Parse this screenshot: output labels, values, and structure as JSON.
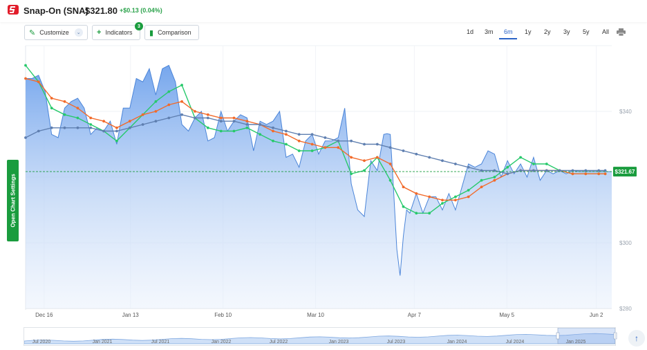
{
  "header": {
    "ticker": "Snap-On (SNA)",
    "price": "$321.80",
    "change": "+$0.13 (0.04%)"
  },
  "toolbar": {
    "customize_label": "Customize",
    "indicators_label": "Indicators",
    "indicators_count": "3",
    "comparison_label": "Comparison"
  },
  "ranges": [
    "1d",
    "3m",
    "6m",
    "1y",
    "2y",
    "3y",
    "5y",
    "All"
  ],
  "active_range": "6m",
  "side_tab_label": "Open Chart Settings",
  "colors": {
    "price_line": "#4a84d8",
    "fill_top": "#6fa2ec",
    "ma_green": "#27c96b",
    "ma_orange": "#f26a2a",
    "ma_slate": "#5f7fb0",
    "current_marker": "#1a9c3e",
    "brand": "#e21d2b"
  },
  "chart_data": {
    "type": "area",
    "ylim": [
      280,
      360
    ],
    "y_ticks": [
      "$340",
      "$300",
      "$280"
    ],
    "y_tick_values": [
      340,
      300,
      280
    ],
    "x_ticks": [
      "Dec 16",
      "Jan 13",
      "Feb 10",
      "Mar 10",
      "Apr 7",
      "May 5",
      "Jun 2"
    ],
    "current_value": 321.67,
    "current_label": "$321.67",
    "series": [
      {
        "kind": "price",
        "x": [
          0,
          1,
          2,
          3,
          4,
          5,
          6,
          7,
          8,
          9,
          10,
          11,
          12,
          13,
          14,
          15,
          16,
          17,
          18,
          19,
          20,
          21,
          22,
          23,
          24,
          25,
          26,
          27,
          28,
          29,
          30,
          31,
          32,
          33,
          34,
          35,
          36,
          37,
          38,
          39,
          40,
          41,
          42,
          43,
          44,
          45,
          46,
          47,
          48,
          49,
          50,
          51,
          52,
          53,
          54,
          55,
          55.5,
          56,
          56.5,
          57,
          57.5,
          58,
          58.5,
          59,
          60,
          61,
          62,
          63,
          64,
          65,
          66,
          67,
          68,
          69,
          70,
          71,
          72,
          73,
          74,
          75,
          76,
          77,
          78,
          79,
          80,
          81,
          82,
          83,
          84,
          85,
          86,
          87,
          88,
          89,
          90
        ],
        "values": [
          350,
          350,
          351,
          346,
          333,
          332,
          341,
          343,
          344,
          341,
          333,
          335,
          334,
          337,
          330,
          341,
          341,
          350,
          349,
          353,
          345,
          353,
          354,
          349,
          336,
          334,
          338,
          340,
          331,
          332,
          340,
          334,
          337,
          339,
          338,
          328,
          337,
          336,
          337,
          340,
          326,
          327,
          323,
          331,
          333,
          327,
          331,
          331,
          332,
          341,
          318,
          310,
          308,
          325,
          322,
          333,
          333.2,
          333,
          316,
          298,
          290,
          302,
          310,
          309,
          315,
          309,
          314,
          314,
          310,
          315,
          310,
          317,
          324,
          323,
          324,
          328,
          327,
          320,
          325,
          321,
          324,
          320,
          326,
          319,
          322,
          321,
          322,
          321,
          322,
          321.67,
          321.67,
          321.67,
          321.67,
          321.67,
          321.67
        ]
      },
      {
        "kind": "moving-average-green",
        "x": [
          0,
          2,
          4,
          6,
          8,
          10,
          12,
          14,
          16,
          18,
          20,
          22,
          24,
          26,
          28,
          30,
          32,
          34,
          36,
          38,
          40,
          42,
          44,
          46,
          48,
          50,
          52,
          54,
          56,
          58,
          60,
          62,
          64,
          66,
          68,
          70,
          72,
          74,
          76,
          78,
          80,
          82,
          84,
          86,
          88,
          89
        ],
        "values": [
          354,
          349,
          341,
          339,
          338,
          336,
          334,
          331,
          335,
          339,
          343,
          346,
          348,
          338,
          335,
          334,
          334,
          335,
          333,
          331,
          330,
          328,
          328,
          329,
          331,
          321,
          322,
          326,
          319,
          311,
          309,
          309,
          312,
          314,
          316,
          319,
          320,
          323,
          326,
          324,
          324,
          322,
          321,
          321,
          321,
          321
        ]
      },
      {
        "kind": "moving-average-orange",
        "x": [
          0,
          2,
          4,
          6,
          8,
          10,
          12,
          14,
          16,
          18,
          20,
          22,
          24,
          26,
          28,
          30,
          32,
          34,
          36,
          38,
          40,
          42,
          44,
          46,
          48,
          50,
          52,
          54,
          56,
          58,
          60,
          62,
          64,
          66,
          68,
          70,
          72,
          74,
          76,
          78,
          80,
          82,
          84,
          86,
          88,
          89
        ],
        "values": [
          350,
          349,
          344,
          343,
          341,
          338,
          337,
          335,
          337,
          339,
          340,
          342,
          343,
          340,
          339,
          338,
          338,
          337,
          336,
          334,
          333,
          331,
          330,
          329,
          329,
          326,
          325,
          326,
          324,
          317,
          315,
          314,
          313,
          313,
          314,
          317,
          319,
          321,
          322,
          322,
          322,
          322,
          321,
          321,
          321,
          321
        ]
      },
      {
        "kind": "moving-average-slate",
        "x": [
          0,
          2,
          4,
          6,
          8,
          10,
          12,
          14,
          16,
          18,
          20,
          22,
          24,
          26,
          28,
          30,
          32,
          34,
          36,
          38,
          40,
          42,
          44,
          46,
          48,
          50,
          52,
          54,
          56,
          58,
          60,
          62,
          64,
          66,
          68,
          70,
          72,
          74,
          76,
          78,
          80,
          82,
          84,
          86,
          88,
          89
        ],
        "values": [
          332,
          334,
          335,
          335,
          335,
          335,
          334,
          334,
          335,
          336,
          337,
          338,
          339,
          338,
          338,
          337,
          337,
          336,
          336,
          335,
          334,
          333,
          333,
          332,
          331,
          331,
          330,
          330,
          329,
          328,
          327,
          326,
          325,
          324,
          323,
          322,
          322,
          321,
          322,
          322,
          322,
          322,
          322,
          322,
          322,
          322
        ]
      }
    ]
  },
  "navigator": {
    "labels": [
      "Jul 2020",
      "Jan 2021",
      "Jul 2021",
      "Jan 2022",
      "Jul 2022",
      "Jan 2023",
      "Jul 2023",
      "Jan 2024",
      "Jul 2024",
      "Jan 2025"
    ]
  }
}
